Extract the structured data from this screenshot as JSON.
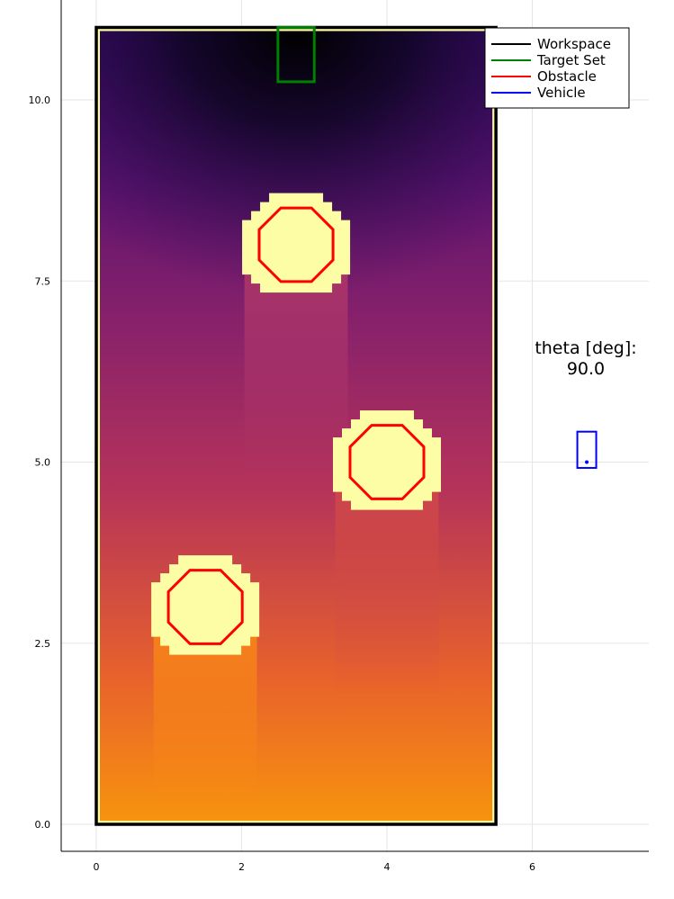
{
  "chart_data": {
    "type": "heatmap",
    "title": "",
    "xlabel": "",
    "ylabel": "",
    "xlim": [
      -0.48,
      7.7
    ],
    "ylim": [
      -0.35,
      11.25
    ],
    "xticks": [
      0,
      2,
      4,
      6
    ],
    "xtick_labels": [
      "0",
      "2",
      "4",
      "6"
    ],
    "yticks": [
      0.0,
      2.5,
      5.0,
      7.5,
      10.0
    ],
    "ytick_labels": [
      "0.0",
      "2.5",
      "5.0",
      "7.5",
      "10.0"
    ],
    "grid": true,
    "legend_position": "top-right",
    "legend": [
      {
        "label": "Workspace",
        "color": "#000000"
      },
      {
        "label": "Target Set",
        "color": "#008000"
      },
      {
        "label": "Obstacle",
        "color": "#ff0000"
      },
      {
        "label": "Vehicle",
        "color": "#0000ff"
      }
    ],
    "workspace": {
      "x": [
        0,
        5.5
      ],
      "y": [
        0,
        11
      ]
    },
    "target_set": {
      "x": [
        2.5,
        3.0
      ],
      "y": [
        10.25,
        11.0
      ]
    },
    "obstacles": [
      {
        "cx": 1.5,
        "cy": 3.0,
        "r": 0.55
      },
      {
        "cx": 4.0,
        "cy": 5.0,
        "r": 0.55
      },
      {
        "cx": 2.75,
        "cy": 8.0,
        "r": 0.55
      }
    ],
    "vehicle": {
      "x": 6.75,
      "y": 5.0,
      "box_x": [
        6.62,
        6.88
      ],
      "box_y": [
        4.92,
        5.42
      ]
    },
    "annotation": {
      "line1": "theta [deg]:",
      "line2": "90.0"
    }
  }
}
